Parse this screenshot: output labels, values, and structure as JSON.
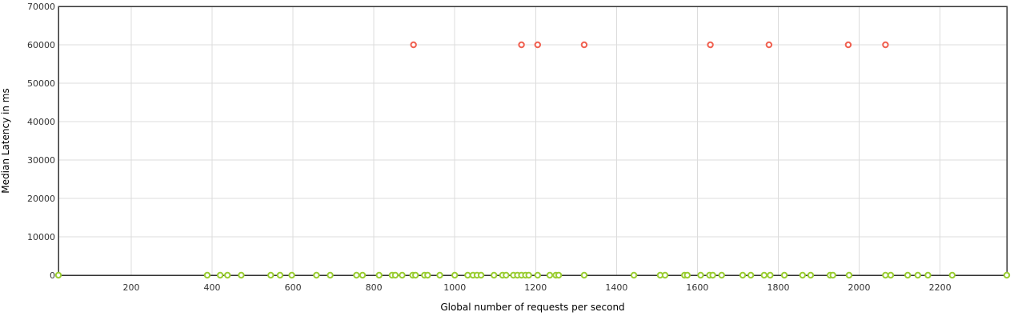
{
  "chart_data": {
    "type": "scatter",
    "xlabel": "Global number of requests per second",
    "ylabel": "Median Latency in ms",
    "xlim": [
      20,
      2365
    ],
    "ylim": [
      0,
      70000
    ],
    "x_ticks": [
      200,
      400,
      600,
      800,
      1000,
      1200,
      1400,
      1600,
      1800,
      2000,
      2200
    ],
    "y_ticks": [
      0,
      10000,
      20000,
      30000,
      40000,
      50000,
      60000,
      70000
    ],
    "grid": true,
    "legend": "none",
    "colors": {
      "ok": "#9acd32",
      "timeout": "#f06050"
    },
    "series": [
      {
        "color_key": "ok",
        "points": [
          [
            20,
            0
          ],
          [
            388,
            0
          ],
          [
            420,
            0
          ],
          [
            438,
            0
          ],
          [
            472,
            0
          ],
          [
            545,
            0
          ],
          [
            568,
            0
          ],
          [
            597,
            0
          ],
          [
            658,
            0
          ],
          [
            692,
            0
          ],
          [
            757,
            0
          ],
          [
            772,
            0
          ],
          [
            813,
            0
          ],
          [
            845,
            0
          ],
          [
            853,
            0
          ],
          [
            870,
            0
          ],
          [
            896,
            0
          ],
          [
            903,
            0
          ],
          [
            925,
            0
          ],
          [
            933,
            0
          ],
          [
            963,
            0
          ],
          [
            1000,
            0
          ],
          [
            1032,
            0
          ],
          [
            1045,
            0
          ],
          [
            1055,
            0
          ],
          [
            1065,
            0
          ],
          [
            1097,
            0
          ],
          [
            1118,
            0
          ],
          [
            1127,
            0
          ],
          [
            1145,
            0
          ],
          [
            1155,
            0
          ],
          [
            1165,
            0
          ],
          [
            1175,
            0
          ],
          [
            1183,
            0
          ],
          [
            1205,
            0
          ],
          [
            1235,
            0
          ],
          [
            1250,
            0
          ],
          [
            1257,
            0
          ],
          [
            1320,
            0
          ],
          [
            1443,
            0
          ],
          [
            1508,
            0
          ],
          [
            1520,
            0
          ],
          [
            1568,
            0
          ],
          [
            1575,
            0
          ],
          [
            1608,
            0
          ],
          [
            1630,
            0
          ],
          [
            1638,
            0
          ],
          [
            1660,
            0
          ],
          [
            1712,
            0
          ],
          [
            1732,
            0
          ],
          [
            1765,
            0
          ],
          [
            1780,
            0
          ],
          [
            1815,
            0
          ],
          [
            1860,
            0
          ],
          [
            1880,
            0
          ],
          [
            1928,
            0
          ],
          [
            1935,
            0
          ],
          [
            1975,
            0
          ],
          [
            2065,
            0
          ],
          [
            2078,
            0
          ],
          [
            2120,
            0
          ],
          [
            2145,
            0
          ],
          [
            2170,
            0
          ],
          [
            2230,
            0
          ],
          [
            2365,
            0
          ]
        ]
      },
      {
        "color_key": "timeout",
        "points": [
          [
            898,
            60000
          ],
          [
            1165,
            60000
          ],
          [
            1205,
            60000
          ],
          [
            1320,
            60000
          ],
          [
            1632,
            60000
          ],
          [
            1777,
            60000
          ],
          [
            1973,
            60000
          ],
          [
            2065,
            60000
          ]
        ]
      }
    ]
  }
}
